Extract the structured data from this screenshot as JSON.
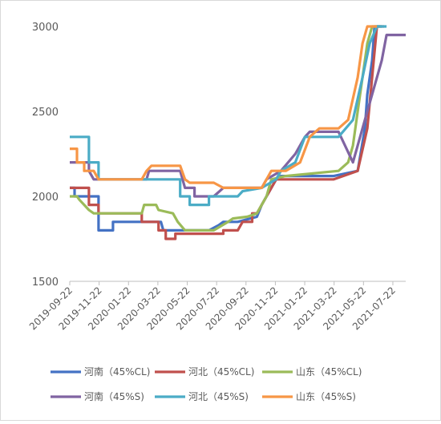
{
  "chart_data": {
    "type": "line",
    "title": "",
    "xlabel": "",
    "ylabel": "",
    "ylim": [
      1500,
      3000
    ],
    "yticks": [
      1500,
      2000,
      2500,
      3000
    ],
    "x_tick_labels": [
      "2019-09-22",
      "2019-11-22",
      "2020-01-22",
      "2020-03-22",
      "2020-05-22",
      "2020-07-22",
      "2020-09-22",
      "2020-11-22",
      "2021-01-22",
      "2021-03-22",
      "2021-05-22",
      "2021-07-22"
    ],
    "x_range_days": [
      0,
      700
    ],
    "grid": false,
    "legend_position": "bottom",
    "series": [
      {
        "name": "河南（45%CL)",
        "color": "#4472C4",
        "points": [
          [
            0,
            2050
          ],
          [
            10,
            2050
          ],
          [
            10,
            2000
          ],
          [
            60,
            2000
          ],
          [
            60,
            1800
          ],
          [
            90,
            1800
          ],
          [
            90,
            1850
          ],
          [
            140,
            1850
          ],
          [
            140,
            1850
          ],
          [
            190,
            1850
          ],
          [
            195,
            1800
          ],
          [
            270,
            1800
          ],
          [
            290,
            1800
          ],
          [
            310,
            1830
          ],
          [
            320,
            1850
          ],
          [
            350,
            1850
          ],
          [
            390,
            1880
          ],
          [
            400,
            1950
          ],
          [
            430,
            2100
          ],
          [
            440,
            2120
          ],
          [
            550,
            2120
          ],
          [
            600,
            2150
          ],
          [
            615,
            2400
          ],
          [
            620,
            2600
          ],
          [
            630,
            2800
          ],
          [
            635,
            3000
          ],
          [
            650,
            3000
          ]
        ]
      },
      {
        "name": "河北（45%CL)",
        "color": "#C0504D",
        "points": [
          [
            0,
            2050
          ],
          [
            40,
            2050
          ],
          [
            40,
            1950
          ],
          [
            60,
            1950
          ],
          [
            60,
            1900
          ],
          [
            150,
            1900
          ],
          [
            150,
            1850
          ],
          [
            185,
            1850
          ],
          [
            185,
            1800
          ],
          [
            200,
            1800
          ],
          [
            200,
            1750
          ],
          [
            220,
            1750
          ],
          [
            220,
            1780
          ],
          [
            320,
            1780
          ],
          [
            320,
            1800
          ],
          [
            350,
            1800
          ],
          [
            360,
            1850
          ],
          [
            380,
            1850
          ],
          [
            380,
            1900
          ],
          [
            390,
            1900
          ],
          [
            410,
            2000
          ],
          [
            430,
            2100
          ],
          [
            550,
            2100
          ],
          [
            600,
            2150
          ],
          [
            620,
            2400
          ],
          [
            630,
            2700
          ],
          [
            640,
            3000
          ],
          [
            655,
            3000
          ]
        ]
      },
      {
        "name": "山东（45%CL)",
        "color": "#9BBB59",
        "points": [
          [
            0,
            2000
          ],
          [
            15,
            2000
          ],
          [
            20,
            1980
          ],
          [
            30,
            1950
          ],
          [
            40,
            1920
          ],
          [
            50,
            1900
          ],
          [
            150,
            1900
          ],
          [
            155,
            1950
          ],
          [
            180,
            1950
          ],
          [
            185,
            1920
          ],
          [
            215,
            1900
          ],
          [
            225,
            1850
          ],
          [
            240,
            1800
          ],
          [
            300,
            1800
          ],
          [
            330,
            1850
          ],
          [
            340,
            1870
          ],
          [
            370,
            1880
          ],
          [
            390,
            1900
          ],
          [
            400,
            1950
          ],
          [
            410,
            2000
          ],
          [
            420,
            2100
          ],
          [
            450,
            2120
          ],
          [
            560,
            2150
          ],
          [
            580,
            2200
          ],
          [
            590,
            2300
          ],
          [
            600,
            2500
          ],
          [
            610,
            2700
          ],
          [
            620,
            2900
          ],
          [
            630,
            3000
          ],
          [
            650,
            3000
          ]
        ]
      },
      {
        "name": "河南（45%S)",
        "color": "#8064A2",
        "points": [
          [
            0,
            2200
          ],
          [
            40,
            2200
          ],
          [
            40,
            2150
          ],
          [
            50,
            2100
          ],
          [
            160,
            2100
          ],
          [
            165,
            2150
          ],
          [
            230,
            2150
          ],
          [
            240,
            2050
          ],
          [
            260,
            2050
          ],
          [
            260,
            2000
          ],
          [
            300,
            2000
          ],
          [
            320,
            2050
          ],
          [
            400,
            2050
          ],
          [
            410,
            2100
          ],
          [
            440,
            2150
          ],
          [
            470,
            2250
          ],
          [
            480,
            2300
          ],
          [
            490,
            2350
          ],
          [
            500,
            2380
          ],
          [
            560,
            2380
          ],
          [
            590,
            2200
          ],
          [
            610,
            2400
          ],
          [
            630,
            2600
          ],
          [
            650,
            2800
          ],
          [
            660,
            2950
          ],
          [
            700,
            2950
          ]
        ]
      },
      {
        "name": "河北（45%S)",
        "color": "#4BACC6",
        "points": [
          [
            0,
            2350
          ],
          [
            40,
            2350
          ],
          [
            40,
            2200
          ],
          [
            60,
            2200
          ],
          [
            60,
            2100
          ],
          [
            80,
            2100
          ],
          [
            90,
            2100
          ],
          [
            230,
            2100
          ],
          [
            230,
            2000
          ],
          [
            250,
            2000
          ],
          [
            250,
            1950
          ],
          [
            290,
            1950
          ],
          [
            290,
            2000
          ],
          [
            350,
            2000
          ],
          [
            360,
            2030
          ],
          [
            400,
            2050
          ],
          [
            430,
            2100
          ],
          [
            440,
            2150
          ],
          [
            470,
            2200
          ],
          [
            490,
            2350
          ],
          [
            510,
            2350
          ],
          [
            560,
            2350
          ],
          [
            590,
            2450
          ],
          [
            610,
            2700
          ],
          [
            625,
            2900
          ],
          [
            640,
            3000
          ],
          [
            660,
            3000
          ]
        ]
      },
      {
        "name": "山东（45%S)",
        "color": "#F79646",
        "points": [
          [
            0,
            2280
          ],
          [
            15,
            2280
          ],
          [
            15,
            2200
          ],
          [
            30,
            2200
          ],
          [
            30,
            2150
          ],
          [
            50,
            2150
          ],
          [
            60,
            2100
          ],
          [
            150,
            2100
          ],
          [
            160,
            2150
          ],
          [
            170,
            2180
          ],
          [
            230,
            2180
          ],
          [
            240,
            2100
          ],
          [
            250,
            2080
          ],
          [
            300,
            2080
          ],
          [
            320,
            2050
          ],
          [
            350,
            2050
          ],
          [
            400,
            2050
          ],
          [
            420,
            2150
          ],
          [
            450,
            2150
          ],
          [
            480,
            2200
          ],
          [
            500,
            2350
          ],
          [
            520,
            2400
          ],
          [
            560,
            2400
          ],
          [
            580,
            2450
          ],
          [
            600,
            2700
          ],
          [
            610,
            2900
          ],
          [
            620,
            3000
          ],
          [
            640,
            3000
          ]
        ]
      }
    ]
  }
}
